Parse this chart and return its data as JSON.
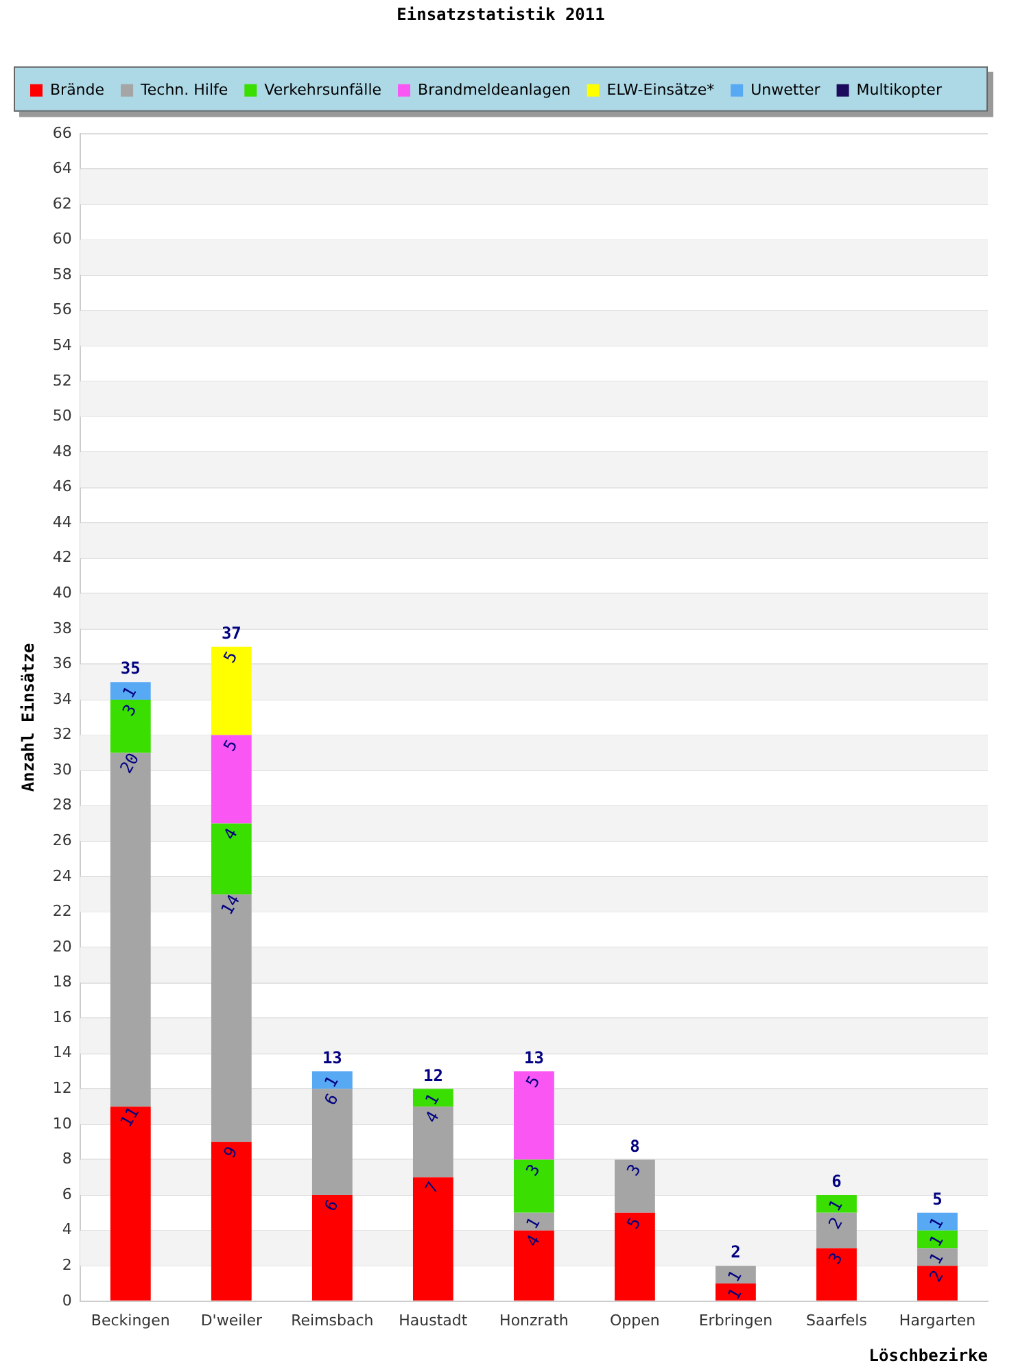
{
  "chart_data": {
    "type": "bar",
    "title": "Einsatzstatistik 2011",
    "xlabel": "Löschbezirke",
    "ylabel": "Anzahl Einsätze",
    "stacked": true,
    "categories": [
      "Beckingen",
      "D'weiler",
      "Reimsbach",
      "Haustadt",
      "Honzrath",
      "Oppen",
      "Erbringen",
      "Saarfels",
      "Hargarten"
    ],
    "series": [
      {
        "name": "Brände",
        "color": "#ff0000",
        "values": [
          11,
          9,
          6,
          7,
          4,
          5,
          1,
          3,
          2
        ]
      },
      {
        "name": "Techn. Hilfe",
        "color": "#a5a5a5",
        "values": [
          20,
          14,
          6,
          4,
          1,
          3,
          1,
          2,
          1
        ]
      },
      {
        "name": "Verkehrsunfälle",
        "color": "#3ade00",
        "values": [
          3,
          4,
          null,
          1,
          3,
          null,
          null,
          1,
          1
        ]
      },
      {
        "name": "Brandmeldeanlagen",
        "color": "#f956f3",
        "values": [
          null,
          5,
          null,
          null,
          5,
          null,
          null,
          null,
          null
        ]
      },
      {
        "name": "ELW-Einsätze*",
        "color": "#ffff00",
        "values": [
          null,
          5,
          null,
          null,
          null,
          null,
          null,
          null,
          null
        ]
      },
      {
        "name": "Unwetter",
        "color": "#58a9f4",
        "values": [
          1,
          null,
          1,
          null,
          null,
          null,
          null,
          null,
          1
        ]
      },
      {
        "name": "Multikopter",
        "color": "#1c0a5c",
        "values": [
          null,
          null,
          null,
          null,
          null,
          null,
          null,
          null,
          null
        ]
      }
    ],
    "totals": [
      "35",
      "37",
      "13",
      "12",
      "13",
      "8",
      "2",
      "6",
      "5"
    ],
    "data_labels": true,
    "ylim": [
      0,
      66
    ],
    "yticks": [
      0,
      2,
      4,
      6,
      8,
      10,
      12,
      14,
      16,
      18,
      20,
      22,
      24,
      26,
      28,
      30,
      32,
      34,
      36,
      38,
      40,
      42,
      44,
      46,
      48,
      50,
      52,
      54,
      56,
      58,
      60,
      62,
      64,
      66
    ],
    "grid": "y",
    "legend": "top left"
  }
}
